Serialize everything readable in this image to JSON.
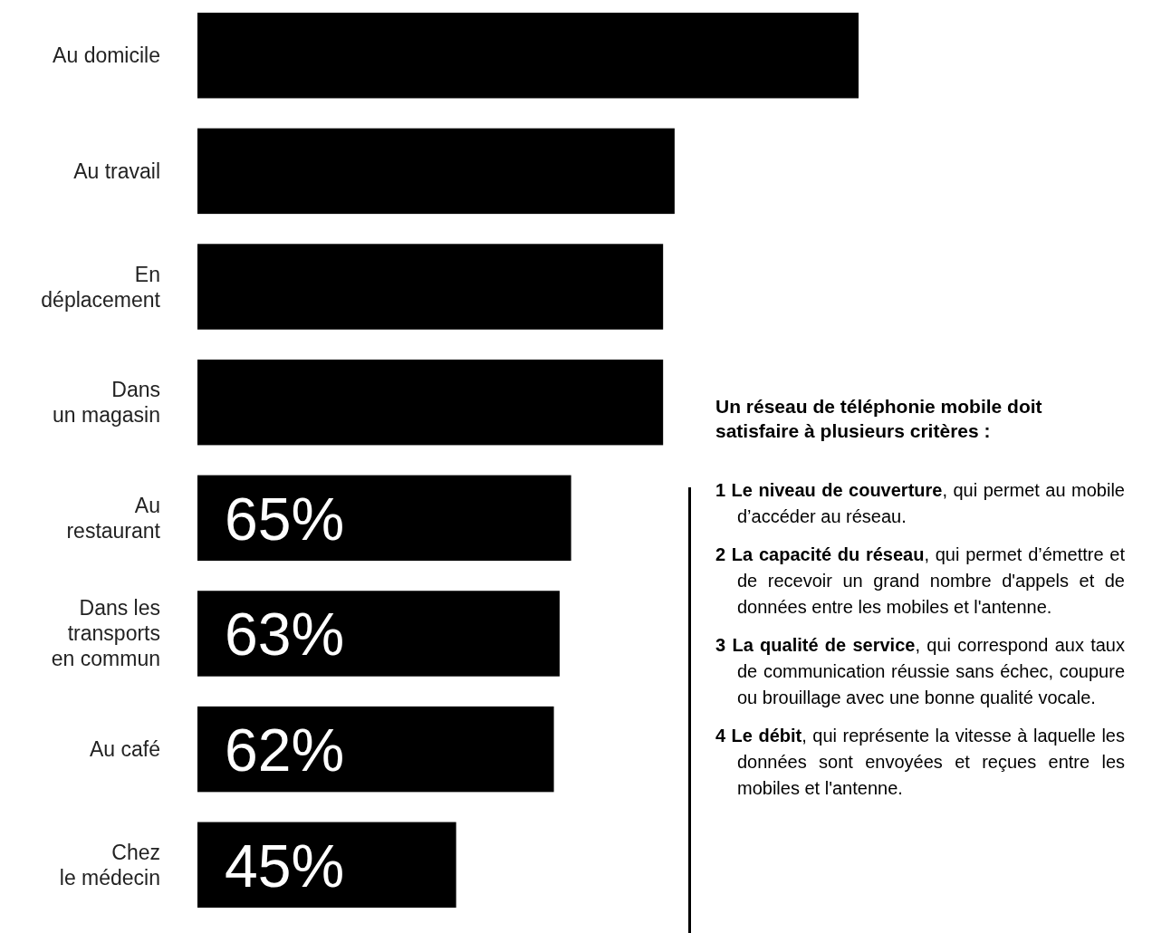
{
  "chart_data": [
    {
      "type": "bar",
      "orientation": "horizontal",
      "categories": [
        "Au domicile",
        "Au travail",
        "En\ndéplacement",
        "Dans\nun magasin",
        "Au\nrestaurant",
        "Dans les\ntransports\nen commun",
        "Au café",
        "Chez\nle médecin"
      ],
      "values": [
        115,
        83,
        81,
        81,
        65,
        63,
        62,
        45
      ],
      "color": "#000000",
      "value_labels": [
        null,
        null,
        null,
        null,
        "65%",
        "63%",
        "62%",
        "45%"
      ]
    },
    {
      "type": "other",
      "title": "Un réseau de téléphonie mobile doit satisfaire  à plusieurs critères :",
      "annotations": [
        "1 Le niveau de couverture, qui permet au mobile d’accéder au réseau.",
        "2 La capacité du réseau, qui permet d’émettre et de recevoir un grand nombre d'appels et de données entre les mobiles et l'antenne.",
        "3 La qualité de service, qui correspond aux taux de communication réussie sans échec, coupure ou brouillage avec une bonne qualité vocale.",
        "4 Le débit, qui représente la vitesse à laquelle les données sont envoyées et reçues entre les mobiles et l'antenne."
      ]
    }
  ]
}
